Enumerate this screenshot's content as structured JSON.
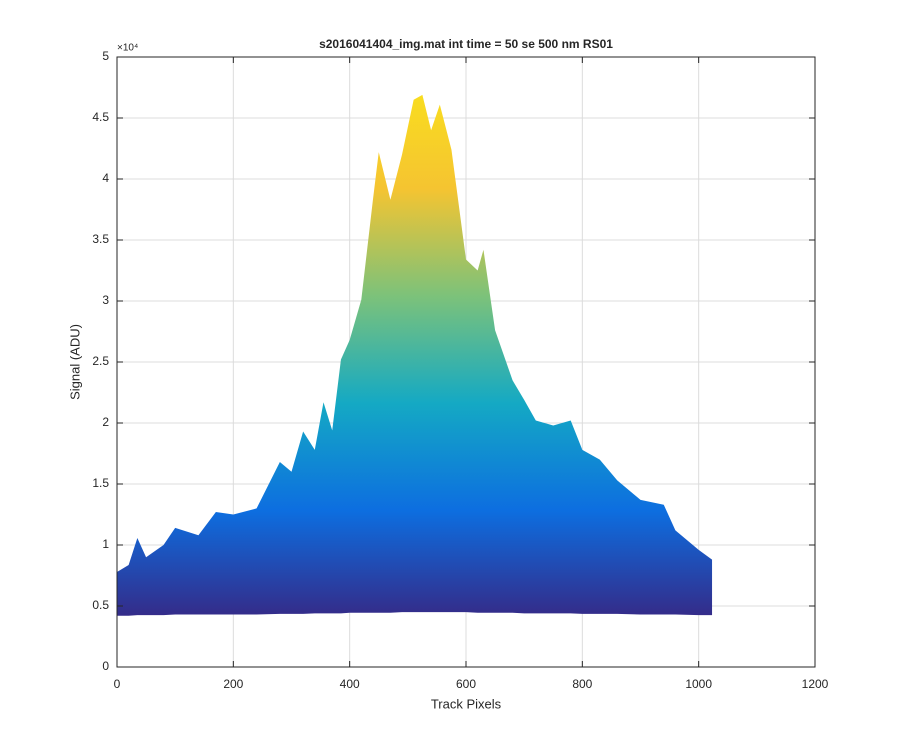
{
  "chart_data": {
    "type": "area",
    "title": "s2016041404_img.mat int time = 50 se  500 nm RS01",
    "x_label": "Track Pixels",
    "y_label": "Signal (ADU)",
    "y_exponent": "×10⁴",
    "xlim": [
      0,
      1200
    ],
    "ylim": [
      0,
      50000
    ],
    "xticks": [
      0,
      200,
      400,
      600,
      800,
      1000,
      1200
    ],
    "yticks": [
      0,
      {
        "value": 5000,
        "label": "0.5"
      },
      {
        "value": 10000,
        "label": "1"
      },
      {
        "value": 15000,
        "label": "1.5"
      },
      {
        "value": 20000,
        "label": "2"
      },
      {
        "value": 25000,
        "label": "2.5"
      },
      {
        "value": 30000,
        "label": "3"
      },
      {
        "value": 35000,
        "label": "3.5"
      },
      {
        "value": 40000,
        "label": "4"
      },
      {
        "value": 45000,
        "label": "4.5"
      },
      {
        "value": 50000,
        "label": "5"
      }
    ],
    "grid": true,
    "colormap": [
      "#352a87",
      "#0d6ee0",
      "#14a9c4",
      "#7cc27a",
      "#f5c431",
      "#f9e01d"
    ],
    "clim": [
      4000,
      48000
    ],
    "x": [
      0,
      20,
      35,
      50,
      80,
      100,
      140,
      170,
      200,
      240,
      280,
      300,
      320,
      340,
      355,
      370,
      385,
      400,
      420,
      440,
      450,
      470,
      490,
      510,
      525,
      540,
      555,
      575,
      600,
      620,
      630,
      650,
      680,
      700,
      720,
      750,
      780,
      800,
      830,
      860,
      900,
      940,
      960,
      1000,
      1023
    ],
    "values": [
      7790,
      8360,
      10570,
      9000,
      10000,
      11400,
      10800,
      12700,
      12500,
      13000,
      16800,
      16000,
      19300,
      17800,
      21700,
      19400,
      25200,
      26800,
      30100,
      38300,
      42200,
      38300,
      42000,
      46500,
      46900,
      44000,
      46100,
      42400,
      33400,
      32500,
      34200,
      27600,
      23500,
      21900,
      20200,
      19800,
      20200,
      17800,
      17000,
      15300,
      13700,
      13300,
      11200,
      9600,
      8800
    ],
    "lower": [
      4200,
      4200,
      4250,
      4250,
      4250,
      4300,
      4300,
      4300,
      4300,
      4300,
      4350,
      4350,
      4350,
      4400,
      4400,
      4400,
      4400,
      4450,
      4450,
      4450,
      4450,
      4450,
      4500,
      4500,
      4500,
      4500,
      4500,
      4500,
      4500,
      4450,
      4450,
      4450,
      4450,
      4400,
      4400,
      4400,
      4400,
      4350,
      4350,
      4350,
      4300,
      4300,
      4300,
      4250,
      4250
    ]
  }
}
